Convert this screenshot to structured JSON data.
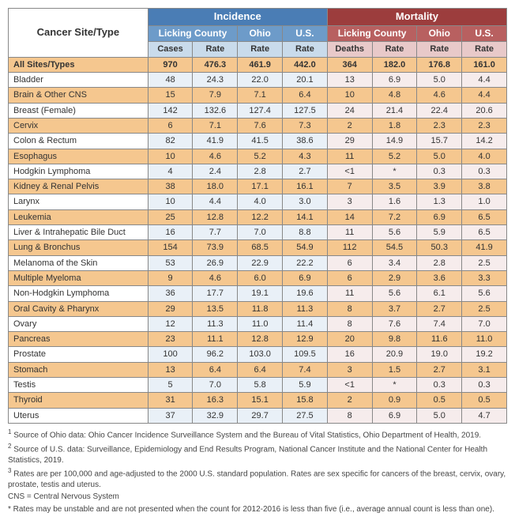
{
  "header": {
    "site_label": "Cancer Site/Type",
    "incidence": "Incidence",
    "mortality": "Mortality",
    "licking": "Licking County",
    "ohio": "Ohio",
    "us": "U.S.",
    "cases": "Cases",
    "deaths": "Deaths",
    "rate": "Rate"
  },
  "colors": {
    "inc_group": "#4a7db5",
    "inc_sub": "#6d9bc9",
    "inc_leaf": "#c9dbeb",
    "mort_group": "#9c3d3d",
    "mort_sub": "#b86060",
    "mort_leaf": "#e8c9c9",
    "alt_row": "#f5c78f",
    "inc_cell": "#e9f0f7",
    "mort_cell": "#f6ecec"
  },
  "rows": [
    {
      "site": "All Sites/Types",
      "cases": "970",
      "i_lr": "476.3",
      "i_oh": "461.9",
      "i_us": "442.0",
      "deaths": "364",
      "m_lr": "182.0",
      "m_oh": "176.8",
      "m_us": "161.0",
      "style": "all"
    },
    {
      "site": "Bladder",
      "cases": "48",
      "i_lr": "24.3",
      "i_oh": "22.0",
      "i_us": "20.1",
      "deaths": "13",
      "m_lr": "6.9",
      "m_oh": "5.0",
      "m_us": "4.4",
      "style": "plain"
    },
    {
      "site": "Brain & Other CNS",
      "cases": "15",
      "i_lr": "7.9",
      "i_oh": "7.1",
      "i_us": "6.4",
      "deaths": "10",
      "m_lr": "4.8",
      "m_oh": "4.6",
      "m_us": "4.4",
      "style": "alt"
    },
    {
      "site": "Breast (Female)",
      "cases": "142",
      "i_lr": "132.6",
      "i_oh": "127.4",
      "i_us": "127.5",
      "deaths": "24",
      "m_lr": "21.4",
      "m_oh": "22.4",
      "m_us": "20.6",
      "style": "plain"
    },
    {
      "site": "Cervix",
      "cases": "6",
      "i_lr": "7.1",
      "i_oh": "7.6",
      "i_us": "7.3",
      "deaths": "2",
      "m_lr": "1.8",
      "m_oh": "2.3",
      "m_us": "2.3",
      "style": "alt"
    },
    {
      "site": "Colon & Rectum",
      "cases": "82",
      "i_lr": "41.9",
      "i_oh": "41.5",
      "i_us": "38.6",
      "deaths": "29",
      "m_lr": "14.9",
      "m_oh": "15.7",
      "m_us": "14.2",
      "style": "plain"
    },
    {
      "site": "Esophagus",
      "cases": "10",
      "i_lr": "4.6",
      "i_oh": "5.2",
      "i_us": "4.3",
      "deaths": "11",
      "m_lr": "5.2",
      "m_oh": "5.0",
      "m_us": "4.0",
      "style": "alt"
    },
    {
      "site": "Hodgkin Lymphoma",
      "cases": "4",
      "i_lr": "2.4",
      "i_oh": "2.8",
      "i_us": "2.7",
      "deaths": "<1",
      "m_lr": "*",
      "m_oh": "0.3",
      "m_us": "0.3",
      "style": "plain"
    },
    {
      "site": "Kidney & Renal Pelvis",
      "cases": "38",
      "i_lr": "18.0",
      "i_oh": "17.1",
      "i_us": "16.1",
      "deaths": "7",
      "m_lr": "3.5",
      "m_oh": "3.9",
      "m_us": "3.8",
      "style": "alt"
    },
    {
      "site": "Larynx",
      "cases": "10",
      "i_lr": "4.4",
      "i_oh": "4.0",
      "i_us": "3.0",
      "deaths": "3",
      "m_lr": "1.6",
      "m_oh": "1.3",
      "m_us": "1.0",
      "style": "plain"
    },
    {
      "site": "Leukemia",
      "cases": "25",
      "i_lr": "12.8",
      "i_oh": "12.2",
      "i_us": "14.1",
      "deaths": "14",
      "m_lr": "7.2",
      "m_oh": "6.9",
      "m_us": "6.5",
      "style": "alt"
    },
    {
      "site": "Liver & Intrahepatic Bile Duct",
      "cases": "16",
      "i_lr": "7.7",
      "i_oh": "7.0",
      "i_us": "8.8",
      "deaths": "11",
      "m_lr": "5.6",
      "m_oh": "5.9",
      "m_us": "6.5",
      "style": "plain"
    },
    {
      "site": "Lung & Bronchus",
      "cases": "154",
      "i_lr": "73.9",
      "i_oh": "68.5",
      "i_us": "54.9",
      "deaths": "112",
      "m_lr": "54.5",
      "m_oh": "50.3",
      "m_us": "41.9",
      "style": "alt"
    },
    {
      "site": "Melanoma of the Skin",
      "cases": "53",
      "i_lr": "26.9",
      "i_oh": "22.9",
      "i_us": "22.2",
      "deaths": "6",
      "m_lr": "3.4",
      "m_oh": "2.8",
      "m_us": "2.5",
      "style": "plain"
    },
    {
      "site": "Multiple Myeloma",
      "cases": "9",
      "i_lr": "4.6",
      "i_oh": "6.0",
      "i_us": "6.9",
      "deaths": "6",
      "m_lr": "2.9",
      "m_oh": "3.6",
      "m_us": "3.3",
      "style": "alt"
    },
    {
      "site": "Non-Hodgkin Lymphoma",
      "cases": "36",
      "i_lr": "17.7",
      "i_oh": "19.1",
      "i_us": "19.6",
      "deaths": "11",
      "m_lr": "5.6",
      "m_oh": "6.1",
      "m_us": "5.6",
      "style": "plain"
    },
    {
      "site": "Oral Cavity & Pharynx",
      "cases": "29",
      "i_lr": "13.5",
      "i_oh": "11.8",
      "i_us": "11.3",
      "deaths": "8",
      "m_lr": "3.7",
      "m_oh": "2.7",
      "m_us": "2.5",
      "style": "alt"
    },
    {
      "site": "Ovary",
      "cases": "12",
      "i_lr": "11.3",
      "i_oh": "11.0",
      "i_us": "11.4",
      "deaths": "8",
      "m_lr": "7.6",
      "m_oh": "7.4",
      "m_us": "7.0",
      "style": "plain"
    },
    {
      "site": "Pancreas",
      "cases": "23",
      "i_lr": "11.1",
      "i_oh": "12.8",
      "i_us": "12.9",
      "deaths": "20",
      "m_lr": "9.8",
      "m_oh": "11.6",
      "m_us": "11.0",
      "style": "alt"
    },
    {
      "site": "Prostate",
      "cases": "100",
      "i_lr": "96.2",
      "i_oh": "103.0",
      "i_us": "109.5",
      "deaths": "16",
      "m_lr": "20.9",
      "m_oh": "19.0",
      "m_us": "19.2",
      "style": "plain"
    },
    {
      "site": "Stomach",
      "cases": "13",
      "i_lr": "6.4",
      "i_oh": "6.4",
      "i_us": "7.4",
      "deaths": "3",
      "m_lr": "1.5",
      "m_oh": "2.7",
      "m_us": "3.1",
      "style": "alt"
    },
    {
      "site": "Testis",
      "cases": "5",
      "i_lr": "7.0",
      "i_oh": "5.8",
      "i_us": "5.9",
      "deaths": "<1",
      "m_lr": "*",
      "m_oh": "0.3",
      "m_us": "0.3",
      "style": "plain"
    },
    {
      "site": "Thyroid",
      "cases": "31",
      "i_lr": "16.3",
      "i_oh": "15.1",
      "i_us": "15.8",
      "deaths": "2",
      "m_lr": "0.9",
      "m_oh": "0.5",
      "m_us": "0.5",
      "style": "alt"
    },
    {
      "site": "Uterus",
      "cases": "37",
      "i_lr": "32.9",
      "i_oh": "29.7",
      "i_us": "27.5",
      "deaths": "8",
      "m_lr": "6.9",
      "m_oh": "5.0",
      "m_us": "4.7",
      "style": "plain"
    }
  ],
  "footnotes": {
    "f1": "Source of Ohio data: Ohio Cancer Incidence Surveillance System and the Bureau of Vital Statistics, Ohio Department of Health, 2019.",
    "f2": "Source of U.S. data: Surveillance, Epidemiology and End Results Program, National Cancer Institute and the National Center for Health Statistics, 2019.",
    "f3": "Rates are per 100,000 and age-adjusted to the 2000 U.S. standard population. Rates are sex specific for cancers of the breast, cervix, ovary, prostate, testis and uterus.",
    "cns": "CNS = Central Nervous System",
    "star": "* Rates may be unstable and are not presented when the count for 2012-2016 is less than five (i.e., average annual count is less than one)."
  },
  "col_widths": {
    "site": "28%",
    "data": "9%"
  }
}
